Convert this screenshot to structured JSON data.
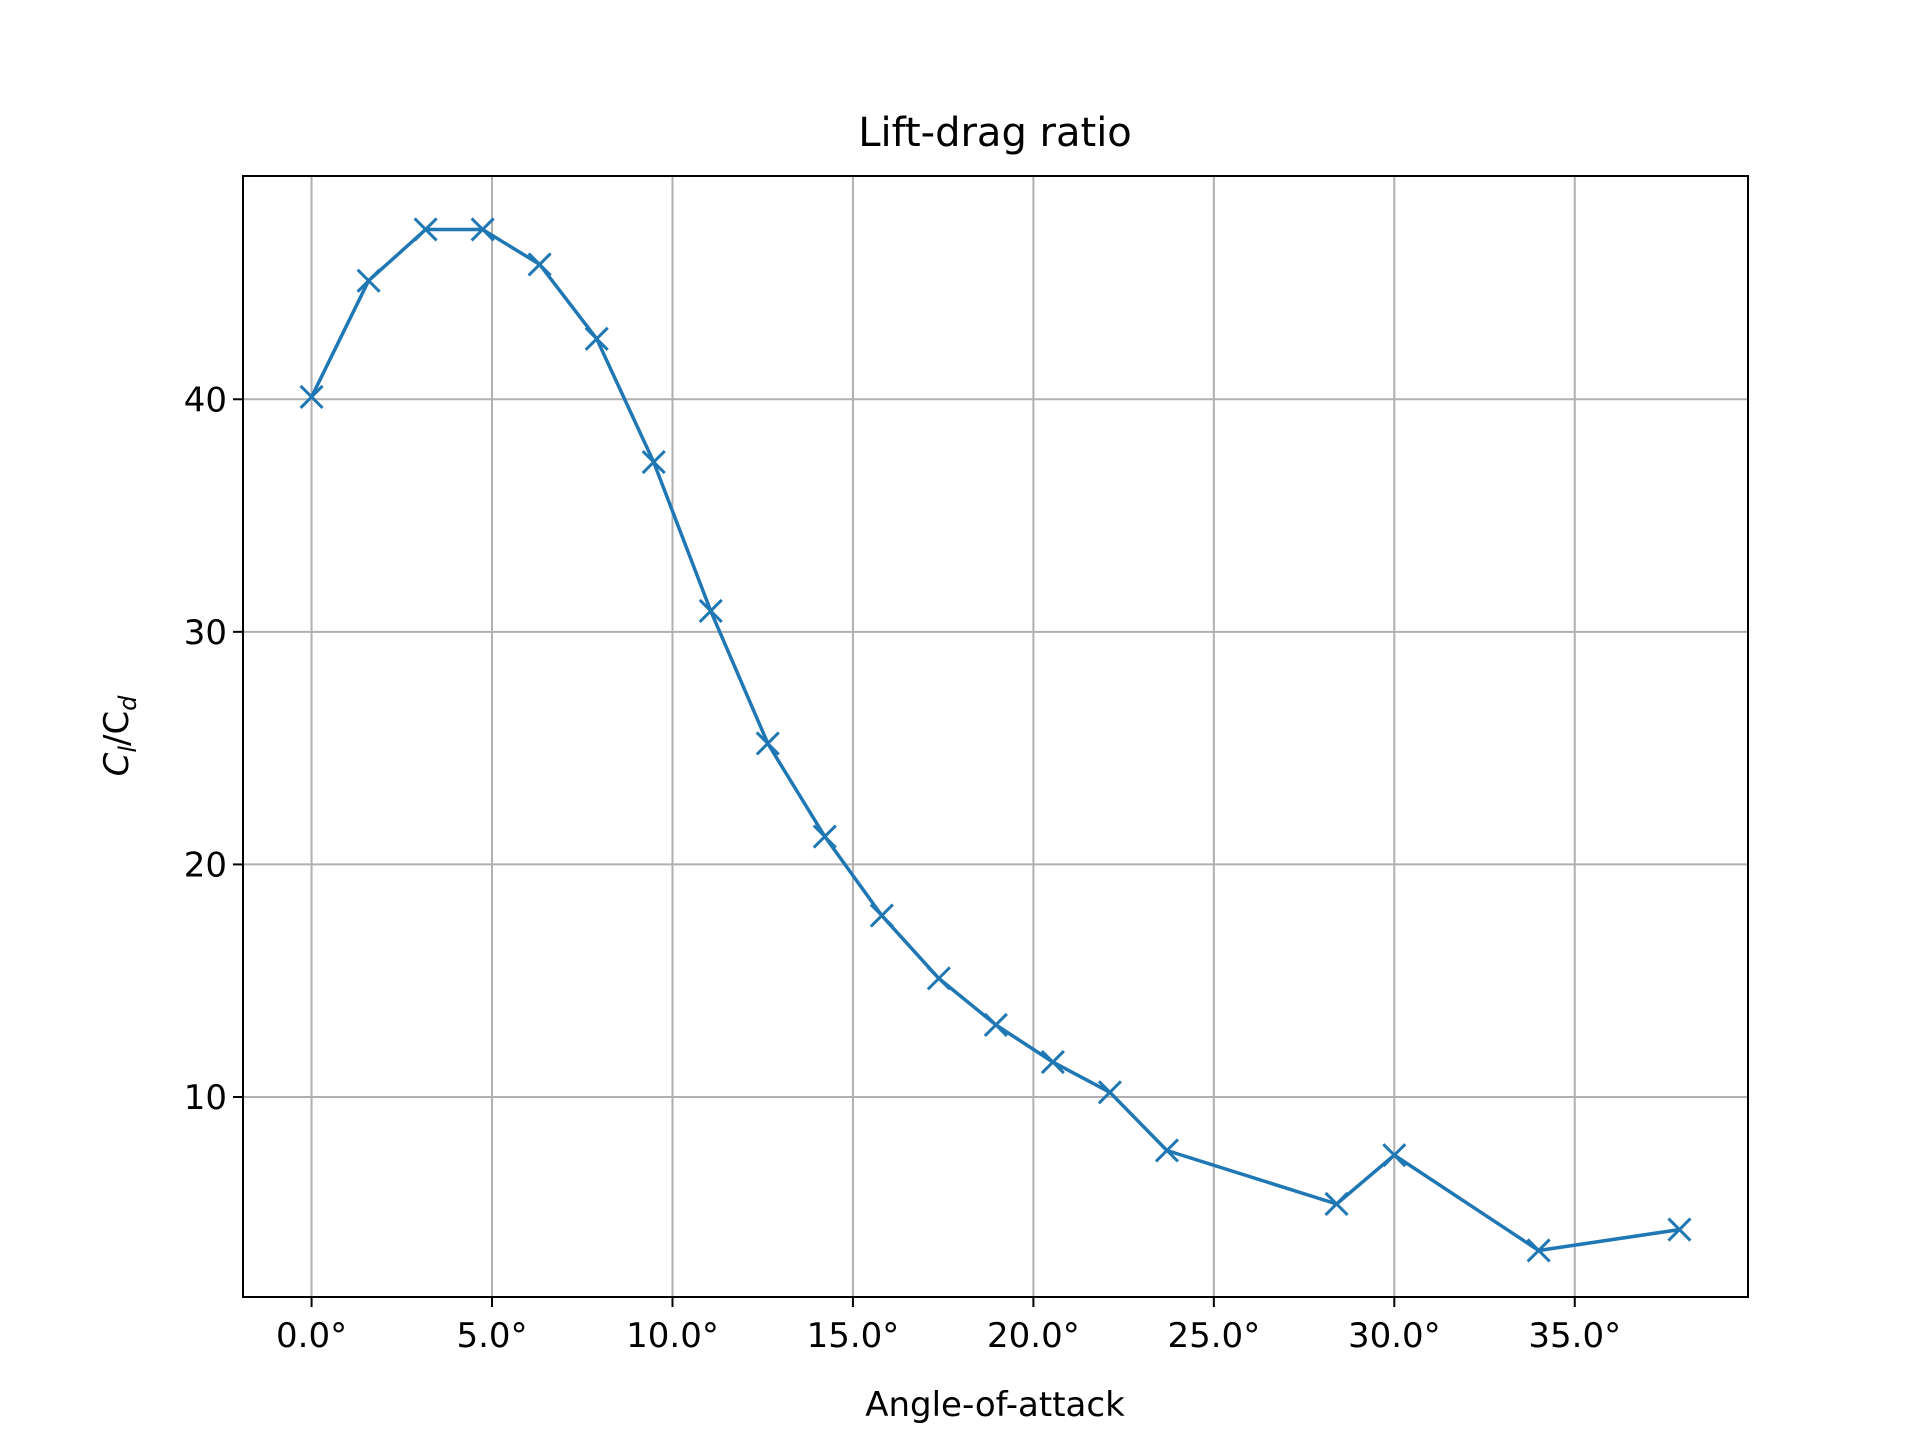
{
  "chart_data": {
    "type": "line",
    "title": "Lift-drag ratio",
    "xlabel": "Angle-of-attack",
    "ylabel_main": "C",
    "ylabel_sub1": "l",
    "ylabel_mid": "/C",
    "ylabel_sub2": "d",
    "xlim": [
      -1.9,
      39.8
    ],
    "ylim": [
      1.4,
      49.6
    ],
    "xticks": [
      0,
      5,
      10,
      15,
      20,
      25,
      30,
      35
    ],
    "xtick_labels": [
      "0.0°",
      "5.0°",
      "10.0°",
      "15.0°",
      "20.0°",
      "25.0°",
      "30.0°",
      "35.0°"
    ],
    "yticks": [
      10,
      20,
      30,
      40
    ],
    "ytick_labels": [
      "10",
      "20",
      "30",
      "40"
    ],
    "grid": true,
    "series": [
      {
        "color": "#1f77b4",
        "marker": "x",
        "x": [
          0.0,
          1.58,
          3.16,
          4.74,
          6.32,
          7.9,
          9.48,
          11.06,
          12.64,
          14.22,
          15.8,
          17.38,
          18.96,
          20.54,
          22.12,
          23.7,
          28.4,
          30.0,
          34.0,
          37.9
        ],
        "y": [
          40.1,
          45.1,
          47.3,
          47.3,
          45.8,
          42.6,
          37.3,
          30.9,
          25.2,
          21.2,
          17.8,
          15.1,
          13.1,
          11.5,
          10.2,
          7.7,
          5.4,
          7.5,
          3.4,
          4.3
        ]
      }
    ]
  }
}
